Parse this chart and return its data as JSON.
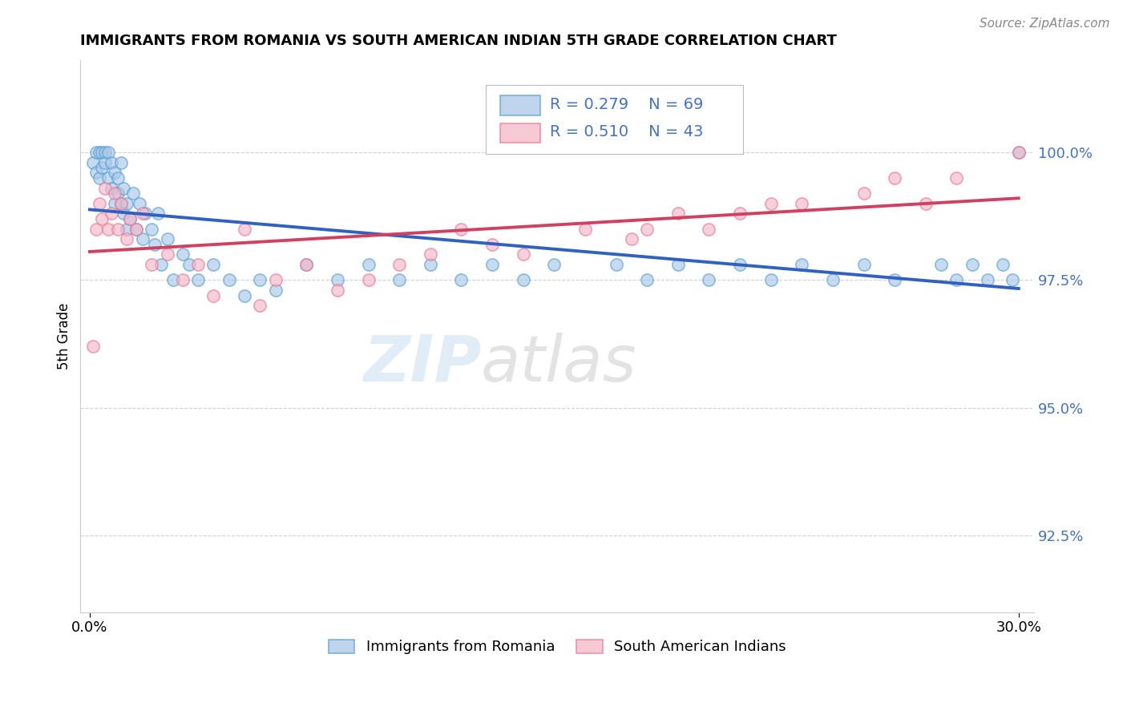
{
  "title": "IMMIGRANTS FROM ROMANIA VS SOUTH AMERICAN INDIAN 5TH GRADE CORRELATION CHART",
  "source": "Source: ZipAtlas.com",
  "ylabel": "5th Grade",
  "xlim": [
    0.0,
    30.0
  ],
  "ylim": [
    91.0,
    101.5
  ],
  "yticks": [
    92.5,
    95.0,
    97.5,
    100.0
  ],
  "ytick_labels": [
    "92.5%",
    "95.0%",
    "97.5%",
    "100.0%"
  ],
  "xtick_labels": [
    "0.0%",
    "30.0%"
  ],
  "blue_color": "#a8c8e8",
  "pink_color": "#f4b8c8",
  "blue_edge": "#5a9fd4",
  "pink_edge": "#e87898",
  "R_blue": 0.279,
  "N_blue": 69,
  "R_pink": 0.51,
  "N_pink": 43,
  "legend_label_blue": "Immigrants from Romania",
  "legend_label_pink": "South American Indians",
  "blue_line_color": "#3060c0",
  "pink_line_color": "#d04060",
  "blue_points_x": [
    0.1,
    0.2,
    0.2,
    0.3,
    0.3,
    0.4,
    0.4,
    0.5,
    0.5,
    0.6,
    0.6,
    0.7,
    0.7,
    0.8,
    0.8,
    0.9,
    0.9,
    1.0,
    1.0,
    1.1,
    1.1,
    1.2,
    1.2,
    1.3,
    1.4,
    1.5,
    1.6,
    1.7,
    1.8,
    2.0,
    2.1,
    2.2,
    2.3,
    2.5,
    2.7,
    3.0,
    3.2,
    3.5,
    4.0,
    4.5,
    5.0,
    5.5,
    6.0,
    7.0,
    8.0,
    9.0,
    10.0,
    11.0,
    12.0,
    13.0,
    14.0,
    15.0,
    17.0,
    18.0,
    19.0,
    20.0,
    21.0,
    22.0,
    23.0,
    24.0,
    25.0,
    26.0,
    27.5,
    28.0,
    28.5,
    29.0,
    29.5,
    29.8,
    30.0
  ],
  "blue_points_y": [
    99.8,
    100.0,
    99.6,
    100.0,
    99.5,
    100.0,
    99.7,
    100.0,
    99.8,
    100.0,
    99.5,
    99.8,
    99.3,
    99.6,
    99.0,
    99.5,
    99.2,
    99.0,
    99.8,
    99.3,
    98.8,
    98.5,
    99.0,
    98.7,
    99.2,
    98.5,
    99.0,
    98.3,
    98.8,
    98.5,
    98.2,
    98.8,
    97.8,
    98.3,
    97.5,
    98.0,
    97.8,
    97.5,
    97.8,
    97.5,
    97.2,
    97.5,
    97.3,
    97.8,
    97.5,
    97.8,
    97.5,
    97.8,
    97.5,
    97.8,
    97.5,
    97.8,
    97.8,
    97.5,
    97.8,
    97.5,
    97.8,
    97.5,
    97.8,
    97.5,
    97.8,
    97.5,
    97.8,
    97.5,
    97.8,
    97.5,
    97.8,
    97.5,
    100.0
  ],
  "pink_points_x": [
    0.1,
    0.2,
    0.3,
    0.4,
    0.5,
    0.6,
    0.7,
    0.8,
    0.9,
    1.0,
    1.2,
    1.3,
    1.5,
    1.7,
    2.0,
    2.5,
    3.0,
    3.5,
    4.0,
    5.0,
    5.5,
    6.0,
    7.0,
    8.0,
    9.0,
    10.0,
    11.0,
    12.0,
    13.0,
    14.0,
    16.0,
    17.5,
    18.0,
    19.0,
    20.0,
    21.0,
    22.0,
    23.0,
    25.0,
    26.0,
    27.0,
    28.0,
    30.0
  ],
  "pink_points_y": [
    96.2,
    98.5,
    99.0,
    98.7,
    99.3,
    98.5,
    98.8,
    99.2,
    98.5,
    99.0,
    98.3,
    98.7,
    98.5,
    98.8,
    97.8,
    98.0,
    97.5,
    97.8,
    97.2,
    98.5,
    97.0,
    97.5,
    97.8,
    97.3,
    97.5,
    97.8,
    98.0,
    98.5,
    98.2,
    98.0,
    98.5,
    98.3,
    98.5,
    98.8,
    98.5,
    98.8,
    99.0,
    99.0,
    99.2,
    99.5,
    99.0,
    99.5,
    100.0
  ]
}
